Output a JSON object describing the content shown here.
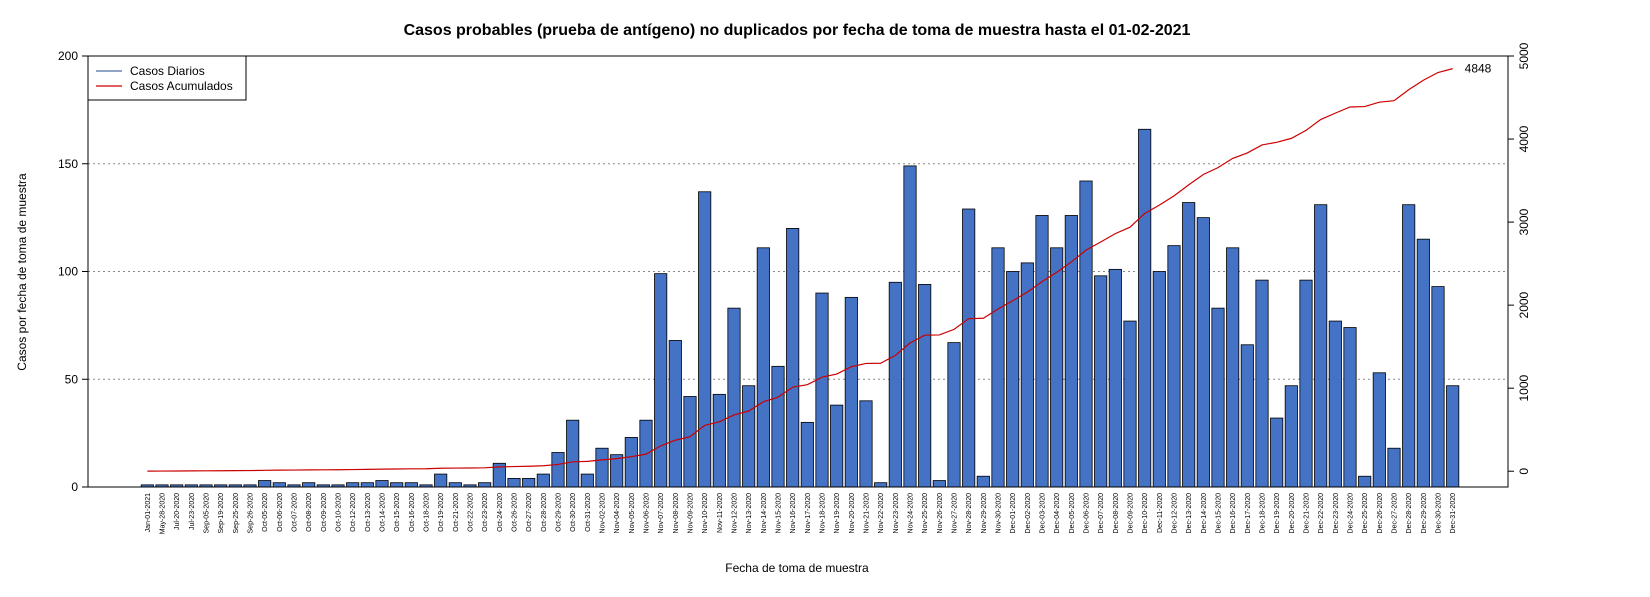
{
  "chart_data": {
    "type": "bar",
    "title": "Casos probables (prueba de antígeno) no duplicados por fecha de toma de muestra hasta el 01-02-2021",
    "x_label": "Fecha de toma de muestra",
    "y_label": "Casos por fecha de toma de muestra",
    "categories": [
      "Jan-01-2021",
      "May-28-2020",
      "Jul-20-2020",
      "Jul-23-2020",
      "Sep-05-2020",
      "Sep-19-2020",
      "Sep-25-2020",
      "Sep-26-2020",
      "Oct-05-2020",
      "Oct-06-2020",
      "Oct-07-2020",
      "Oct-08-2020",
      "Oct-09-2020",
      "Oct-10-2020",
      "Oct-12-2020",
      "Oct-13-2020",
      "Oct-14-2020",
      "Oct-15-2020",
      "Oct-16-2020",
      "Oct-18-2020",
      "Oct-19-2020",
      "Oct-21-2020",
      "Oct-22-2020",
      "Oct-23-2020",
      "Oct-24-2020",
      "Oct-26-2020",
      "Oct-27-2020",
      "Oct-28-2020",
      "Oct-29-2020",
      "Oct-30-2020",
      "Oct-31-2020",
      "Nov-02-2020",
      "Nov-04-2020",
      "Nov-05-2020",
      "Nov-06-2020",
      "Nov-07-2020",
      "Nov-08-2020",
      "Nov-09-2020",
      "Nov-10-2020",
      "Nov-11-2020",
      "Nov-12-2020",
      "Nov-13-2020",
      "Nov-14-2020",
      "Nov-15-2020",
      "Nov-16-2020",
      "Nov-17-2020",
      "Nov-18-2020",
      "Nov-19-2020",
      "Nov-20-2020",
      "Nov-21-2020",
      "Nov-22-2020",
      "Nov-23-2020",
      "Nov-24-2020",
      "Nov-25-2020",
      "Nov-26-2020",
      "Nov-27-2020",
      "Nov-28-2020",
      "Nov-29-2020",
      "Nov-30-2020",
      "Dec-01-2020",
      "Dec-02-2020",
      "Dec-03-2020",
      "Dec-04-2020",
      "Dec-05-2020",
      "Dec-06-2020",
      "Dec-07-2020",
      "Dec-08-2020",
      "Dec-09-2020",
      "Dec-10-2020",
      "Dec-11-2020",
      "Dec-12-2020",
      "Dec-13-2020",
      "Dec-14-2020",
      "Dec-15-2020",
      "Dec-16-2020",
      "Dec-17-2020",
      "Dec-18-2020",
      "Dec-19-2020",
      "Dec-20-2020",
      "Dec-21-2020",
      "Dec-22-2020",
      "Dec-23-2020",
      "Dec-24-2020",
      "Dec-25-2020",
      "Dec-26-2020",
      "Dec-27-2020",
      "Dec-28-2020",
      "Dec-29-2020",
      "Dec-30-2020",
      "Dec-31-2020"
    ],
    "series": [
      {
        "name": "Casos Diarios",
        "type": "bar",
        "color": "#4472c4",
        "legend_color": "#4a6fa5",
        "values": [
          1,
          1,
          1,
          1,
          1,
          1,
          1,
          1,
          3,
          2,
          1,
          2,
          1,
          1,
          2,
          2,
          3,
          2,
          2,
          1,
          6,
          2,
          1,
          2,
          11,
          4,
          4,
          6,
          16,
          31,
          6,
          18,
          15,
          23,
          31,
          99,
          68,
          42,
          137,
          43,
          83,
          47,
          111,
          56,
          120,
          30,
          90,
          38,
          88,
          40,
          2,
          95,
          149,
          94,
          3,
          67,
          129,
          5,
          111,
          100,
          104,
          126,
          111,
          126,
          142,
          98,
          101,
          77,
          166,
          100,
          112,
          132,
          125,
          83,
          111,
          66,
          96,
          32,
          47,
          96,
          131,
          77,
          74,
          5,
          53,
          18,
          131,
          115,
          93,
          47
        ]
      },
      {
        "name": "Casos Acumulados",
        "type": "line",
        "axis": "y2",
        "color": "#cc0000",
        "values": [
          1,
          2,
          3,
          4,
          5,
          6,
          7,
          8,
          11,
          13,
          14,
          16,
          17,
          18,
          20,
          22,
          25,
          27,
          29,
          30,
          36,
          38,
          39,
          41,
          52,
          56,
          60,
          66,
          82,
          113,
          119,
          137,
          152,
          175,
          206,
          305,
          373,
          415,
          552,
          595,
          678,
          725,
          836,
          892,
          1012,
          1042,
          1132,
          1170,
          1258,
          1298,
          1300,
          1395,
          1544,
          1638,
          1641,
          1708,
          1837,
          1842,
          1953,
          2053,
          2157,
          2283,
          2394,
          2520,
          2662,
          2760,
          2861,
          2938,
          3104,
          3204,
          3316,
          3448,
          3573,
          3656,
          3767,
          3833,
          3929,
          3961,
          4008,
          4104,
          4235,
          4312,
          4386,
          4391,
          4444,
          4462,
          4593,
          4708,
          4801,
          4848
        ]
      }
    ],
    "ylim": [
      0,
      200
    ],
    "yticks": [
      0,
      50,
      100,
      150,
      200
    ],
    "y2lim": [
      -190,
      5000
    ],
    "y2ticks": [
      0,
      1000,
      2000,
      3000,
      4000,
      5000
    ],
    "grid": true,
    "legend": "top-left"
  }
}
